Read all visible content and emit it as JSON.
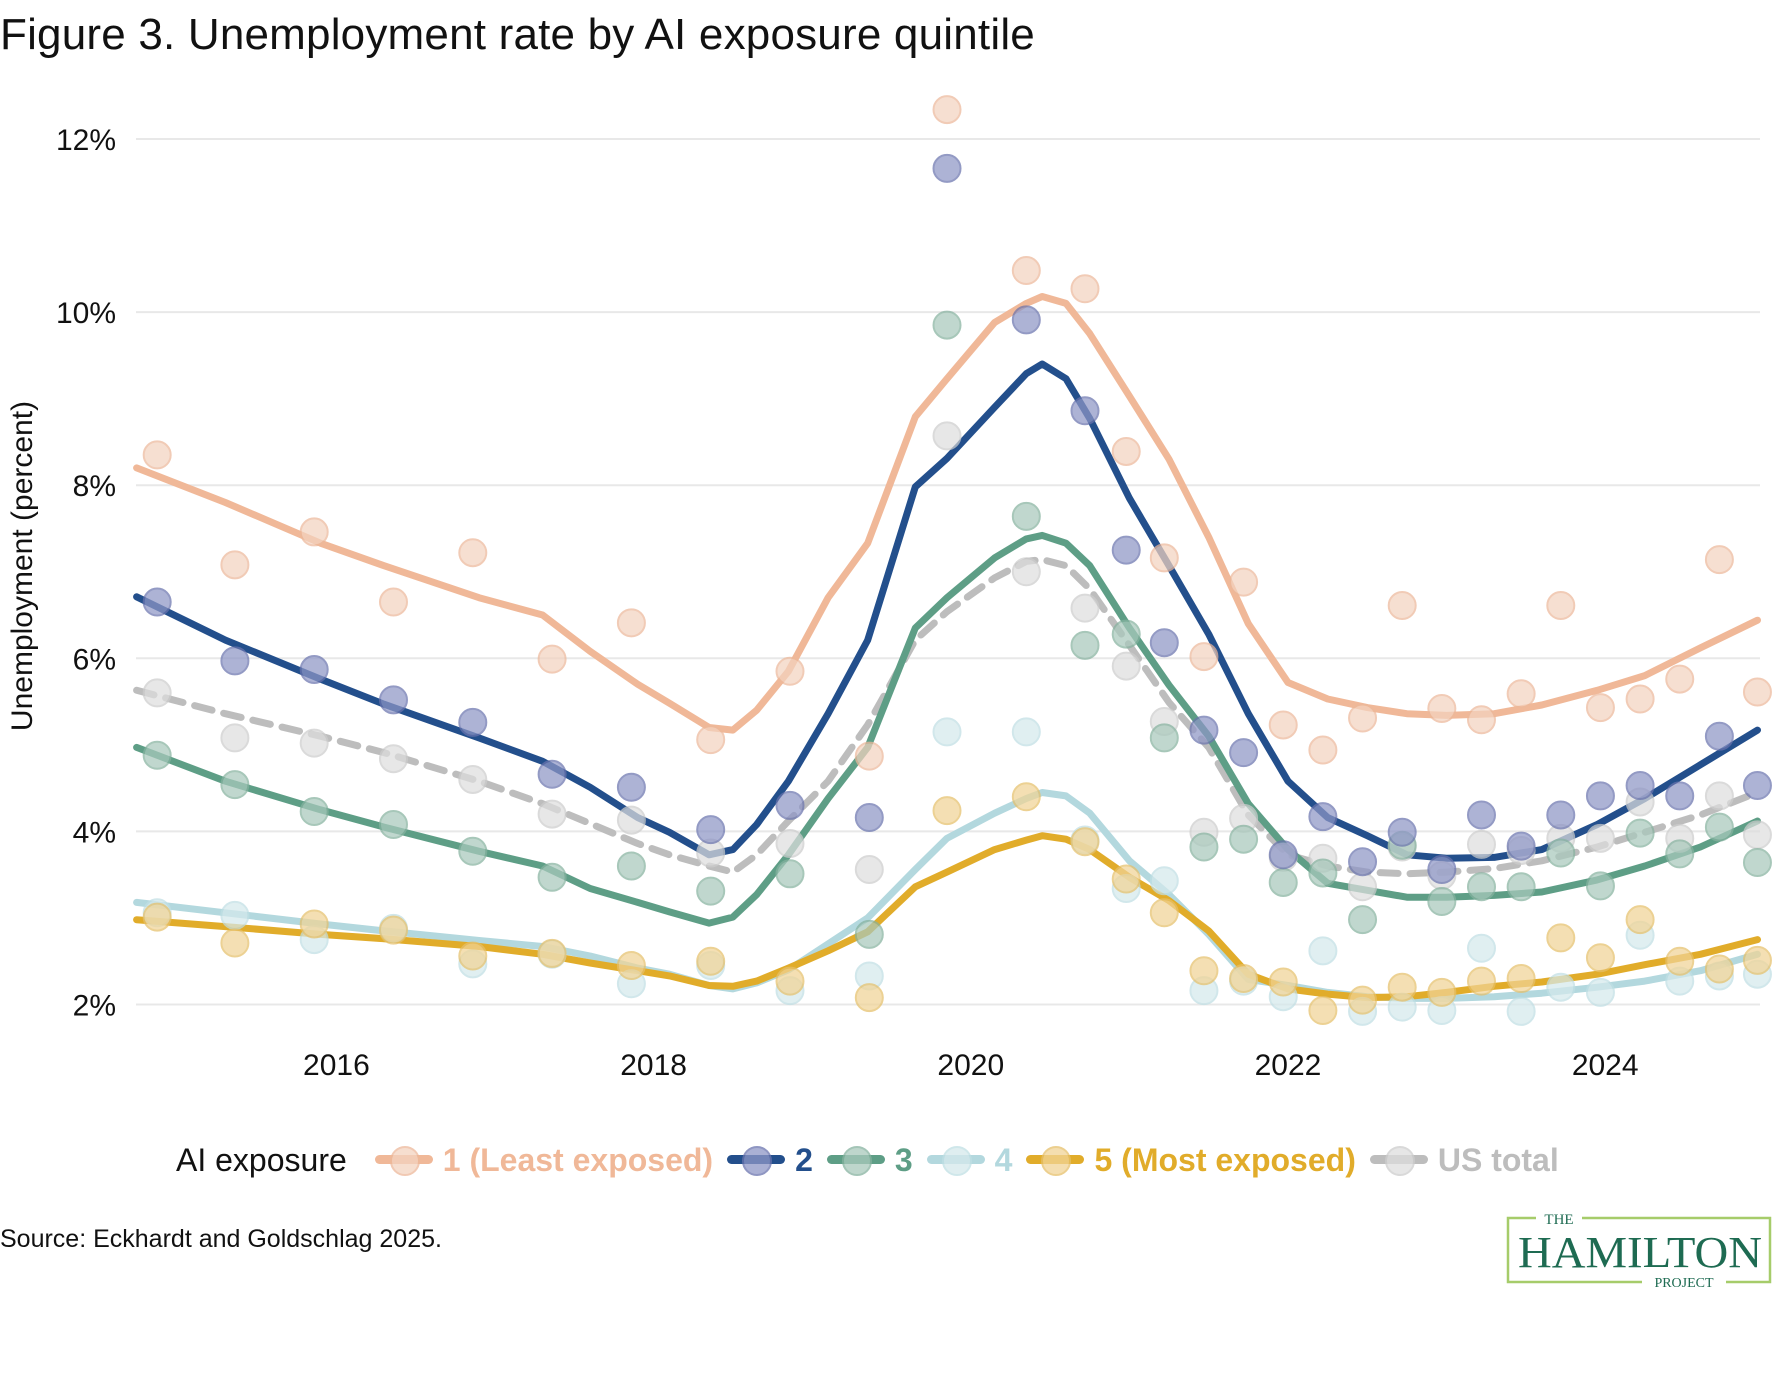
{
  "title": "Figure 3. Unemployment rate by AI exposure quintile",
  "source": "Source: Eckhardt and Goldschlag 2025.",
  "logo": {
    "line1": "THE",
    "line2": "HAMILTON",
    "line3": "PROJECT",
    "color": "#1E6B52",
    "border": "#A6CC6A"
  },
  "legend": {
    "title": "AI exposure"
  },
  "chart_data": {
    "type": "line",
    "title": "Figure 3. Unemployment rate by AI exposure quintile",
    "xlabel": "",
    "ylabel": "Unemployment (percent)",
    "xlim": [
      2014.74,
      2024.96
    ],
    "ylim": [
      1.7,
      12.5
    ],
    "x_ticks": [
      2016,
      2018,
      2020,
      2022,
      2024
    ],
    "x_tick_labels": [
      "2016",
      "2018",
      "2020",
      "2022",
      "2024"
    ],
    "y_ticks": [
      2,
      4,
      6,
      8,
      10,
      12
    ],
    "y_tick_labels": [
      "2%",
      "4%",
      "6%",
      "8%",
      "10%",
      "12%"
    ],
    "grid": "horizontal",
    "legend_position": "bottom",
    "dot_x": [
      2014.87,
      2015.36,
      2015.86,
      2016.36,
      2016.86,
      2017.36,
      2017.86,
      2018.36,
      2018.86,
      2019.36,
      2019.85,
      2020.35,
      2020.72,
      2020.98,
      2021.22,
      2021.47,
      2021.72,
      2021.97,
      2022.22,
      2022.47,
      2022.72,
      2022.97,
      2023.22,
      2023.47,
      2023.72,
      2023.97,
      2024.22,
      2024.47,
      2024.72,
      2024.96
    ],
    "trend_x": [
      2014.74,
      2015.3,
      2015.9,
      2016.3,
      2016.9,
      2017.3,
      2017.6,
      2017.9,
      2018.1,
      2018.35,
      2018.5,
      2018.65,
      2018.85,
      2019.1,
      2019.35,
      2019.65,
      2019.85,
      2020.15,
      2020.35,
      2020.45,
      2020.6,
      2020.75,
      2021.0,
      2021.25,
      2021.5,
      2021.75,
      2022.0,
      2022.25,
      2022.5,
      2022.75,
      2023.0,
      2023.3,
      2023.6,
      2023.95,
      2024.25,
      2024.6,
      2024.96
    ],
    "series": [
      {
        "name": "1 (Least exposed)",
        "color": "#F0B898",
        "dot_fill": "#F3D3C0",
        "dot_stroke": "#EDB89A",
        "dashed": false,
        "dots": [
          8.35,
          7.08,
          7.46,
          6.65,
          7.22,
          5.99,
          6.41,
          5.06,
          5.85,
          4.87,
          12.34,
          10.48,
          10.27,
          8.39,
          7.16,
          6.02,
          6.88,
          5.23,
          4.94,
          5.31,
          6.61,
          5.42,
          5.29,
          5.59,
          6.61,
          5.43,
          5.53,
          5.76,
          7.14,
          5.61
        ],
        "trend": [
          8.2,
          7.8,
          7.33,
          7.07,
          6.7,
          6.5,
          6.08,
          5.7,
          5.48,
          5.2,
          5.17,
          5.4,
          5.85,
          6.7,
          7.33,
          8.79,
          9.23,
          9.88,
          10.1,
          10.18,
          10.1,
          9.75,
          9.03,
          8.3,
          7.4,
          6.4,
          5.72,
          5.53,
          5.43,
          5.36,
          5.34,
          5.36,
          5.46,
          5.63,
          5.8,
          6.12,
          6.44
        ]
      },
      {
        "name": "2",
        "color": "#234F8C",
        "dot_fill": "#8E96C6",
        "dot_stroke": "#6A74AE",
        "dashed": false,
        "dots": [
          6.65,
          5.97,
          5.87,
          5.52,
          5.26,
          4.66,
          4.51,
          4.02,
          4.3,
          4.16,
          11.66,
          9.91,
          8.86,
          7.25,
          6.18,
          5.17,
          4.91,
          3.73,
          4.17,
          3.65,
          3.99,
          3.56,
          4.19,
          3.83,
          4.19,
          4.41,
          4.53,
          4.41,
          5.1,
          4.53
        ],
        "trend": [
          6.71,
          6.21,
          5.76,
          5.47,
          5.08,
          4.81,
          4.51,
          4.16,
          3.99,
          3.73,
          3.79,
          4.08,
          4.58,
          5.36,
          6.21,
          7.98,
          8.31,
          8.9,
          9.29,
          9.4,
          9.23,
          8.77,
          7.85,
          7.07,
          6.28,
          5.36,
          4.58,
          4.16,
          3.95,
          3.73,
          3.69,
          3.7,
          3.79,
          4.08,
          4.38,
          4.77,
          5.17
        ]
      },
      {
        "name": "3",
        "color": "#5E9E86",
        "dot_fill": "#A9C9BC",
        "dot_stroke": "#86B29F",
        "dashed": false,
        "dots": [
          4.88,
          4.54,
          4.23,
          4.08,
          3.77,
          3.47,
          3.6,
          3.31,
          3.51,
          2.81,
          9.85,
          7.64,
          6.15,
          6.28,
          5.08,
          3.82,
          3.91,
          3.41,
          3.52,
          2.98,
          3.84,
          3.19,
          3.36,
          3.36,
          3.75,
          3.37,
          3.98,
          3.74,
          4.05,
          3.64
        ],
        "trend": [
          4.97,
          4.58,
          4.25,
          4.05,
          3.77,
          3.6,
          3.34,
          3.18,
          3.07,
          2.94,
          3.01,
          3.27,
          3.73,
          4.38,
          4.97,
          6.35,
          6.7,
          7.16,
          7.38,
          7.42,
          7.33,
          7.07,
          6.35,
          5.69,
          5.1,
          4.32,
          3.79,
          3.4,
          3.32,
          3.24,
          3.24,
          3.26,
          3.3,
          3.44,
          3.6,
          3.82,
          4.12
        ]
      },
      {
        "name": "4",
        "color": "#B3D8DE",
        "dot_fill": "#D5E9EC",
        "dot_stroke": "#C0DFE4",
        "dashed": false,
        "dots": [
          3.06,
          3.03,
          2.75,
          2.88,
          2.47,
          2.58,
          2.24,
          2.45,
          2.16,
          2.33,
          5.15,
          5.15,
          3.9,
          3.34,
          3.43,
          2.16,
          2.27,
          2.09,
          2.62,
          1.92,
          1.97,
          1.93,
          2.65,
          1.92,
          2.2,
          2.14,
          2.8,
          2.27,
          2.33,
          2.35
        ],
        "trend": [
          3.18,
          3.06,
          2.93,
          2.85,
          2.74,
          2.67,
          2.56,
          2.42,
          2.35,
          2.22,
          2.18,
          2.25,
          2.4,
          2.7,
          3.0,
          3.56,
          3.92,
          4.21,
          4.38,
          4.45,
          4.41,
          4.21,
          3.66,
          3.27,
          2.81,
          2.29,
          2.22,
          2.14,
          2.09,
          2.07,
          2.07,
          2.09,
          2.13,
          2.2,
          2.27,
          2.39,
          2.58
        ]
      },
      {
        "name": "5 (Most exposed)",
        "color": "#E1AC2A",
        "dot_fill": "#F1D496",
        "dot_stroke": "#E6C06A",
        "dashed": false,
        "dots": [
          3.01,
          2.71,
          2.93,
          2.86,
          2.56,
          2.59,
          2.45,
          2.5,
          2.27,
          2.08,
          4.24,
          4.4,
          3.88,
          3.45,
          3.06,
          2.39,
          2.3,
          2.26,
          1.93,
          2.05,
          2.2,
          2.14,
          2.27,
          2.3,
          2.77,
          2.54,
          2.98,
          2.5,
          2.41,
          2.51
        ],
        "trend": [
          2.98,
          2.9,
          2.81,
          2.76,
          2.67,
          2.58,
          2.48,
          2.39,
          2.33,
          2.22,
          2.21,
          2.27,
          2.42,
          2.62,
          2.84,
          3.36,
          3.53,
          3.79,
          3.9,
          3.95,
          3.91,
          3.79,
          3.47,
          3.2,
          2.85,
          2.35,
          2.18,
          2.12,
          2.08,
          2.09,
          2.14,
          2.21,
          2.26,
          2.35,
          2.46,
          2.58,
          2.75
        ]
      },
      {
        "name": "US total",
        "color": "#BDBDBD",
        "dot_fill": "#DEDEDE",
        "dot_stroke": "#CDCDCD",
        "dashed": true,
        "dots": [
          5.6,
          5.08,
          5.02,
          4.84,
          4.6,
          4.2,
          4.13,
          3.75,
          3.86,
          3.56,
          8.57,
          7.0,
          6.58,
          5.91,
          5.27,
          3.99,
          4.15,
          3.7,
          3.69,
          3.36,
          3.82,
          3.49,
          3.85,
          3.78,
          3.92,
          3.92,
          4.34,
          3.92,
          4.41,
          3.96
        ],
        "trend": [
          5.63,
          5.36,
          5.1,
          4.91,
          4.58,
          4.32,
          4.09,
          3.86,
          3.73,
          3.6,
          3.53,
          3.73,
          4.12,
          4.58,
          5.23,
          6.21,
          6.54,
          6.93,
          7.12,
          7.14,
          7.07,
          6.8,
          6.15,
          5.49,
          4.97,
          4.19,
          3.73,
          3.6,
          3.53,
          3.51,
          3.53,
          3.57,
          3.66,
          3.82,
          3.99,
          4.19,
          4.45
        ]
      }
    ]
  }
}
